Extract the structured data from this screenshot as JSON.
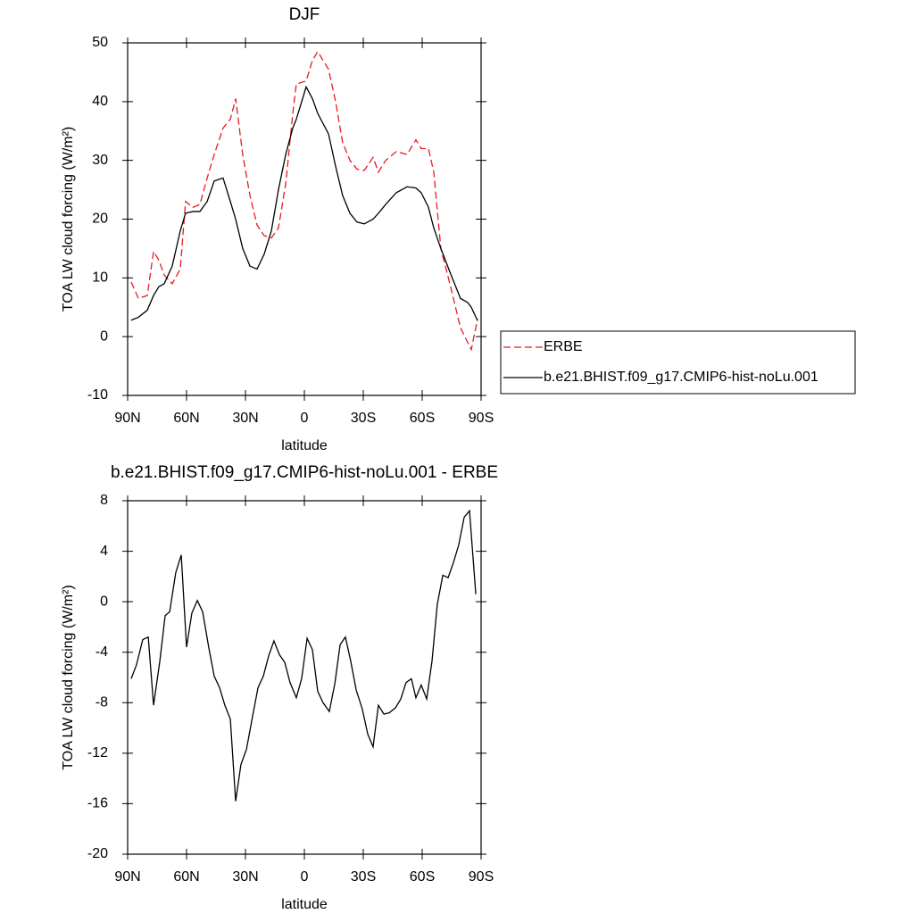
{
  "chart_data": [
    {
      "type": "line",
      "title": "DJF",
      "xlabel": "latitude",
      "ylabel": "TOA LW cloud forcing (W/m²)",
      "xlim": [
        90,
        -90
      ],
      "xticks": [
        {
          "value": 90,
          "label": "90N"
        },
        {
          "value": 60,
          "label": "60N"
        },
        {
          "value": 30,
          "label": "30N"
        },
        0,
        {
          "value": -30,
          "label": "30S"
        },
        {
          "value": -60,
          "label": "60S"
        },
        {
          "value": -90,
          "label": "90S"
        }
      ],
      "ylim": [
        -10,
        50
      ],
      "yticks": [
        -10,
        0,
        10,
        20,
        30,
        40,
        50
      ],
      "legend": "right",
      "x": [
        88.2,
        84.5,
        80,
        76.8,
        74.1,
        71.4,
        67.3,
        63.2,
        60.5,
        56.8,
        53.2,
        49.5,
        45.9,
        41.4,
        37.7,
        35,
        31.4,
        27.7,
        24.1,
        20.5,
        16.8,
        13.2,
        9.5,
        5.9,
        4.1,
        -0.9,
        -4.1,
        -6.8,
        -12.3,
        -15.9,
        -19.5,
        -23.2,
        -26.8,
        -30.5,
        -35,
        -37.7,
        -41.4,
        -46.8,
        -52.3,
        -56.8,
        -59.5,
        -63.2,
        -65.9,
        -69.5,
        -74.1,
        -79.5,
        -83.2,
        -85,
        -88.2
      ],
      "series": [
        {
          "name": "ERBE",
          "color": "#e8191f",
          "dash": true,
          "values": [
            9.3,
            6.5,
            7,
            14.5,
            13,
            10.5,
            9,
            11.5,
            23,
            22,
            22.5,
            27,
            31,
            35.5,
            37,
            40.5,
            31,
            24,
            19,
            17.2,
            16.8,
            18.5,
            26,
            38,
            43,
            43.5,
            47,
            48.5,
            45.5,
            40,
            33,
            30,
            28.5,
            28.3,
            30.5,
            28,
            30,
            31.5,
            31,
            33.5,
            32,
            32,
            28,
            15,
            9,
            1.5,
            -1,
            -2.2,
            3
          ]
        },
        {
          "name": "b.e21.BHIST.f09_g17.CMIP6-hist-noLu.001",
          "color": "#000000",
          "dash": false,
          "values": [
            2.8,
            3.3,
            4.5,
            7,
            8.5,
            9,
            12,
            18,
            21,
            21.3,
            21.3,
            23,
            26.5,
            27,
            23,
            20,
            15,
            12,
            11.5,
            14,
            18,
            25,
            31,
            35.5,
            37,
            42.5,
            40.5,
            38,
            34.5,
            29,
            24,
            21,
            19.5,
            19.2,
            20,
            21,
            22.5,
            24.5,
            25.5,
            25.3,
            24.5,
            22,
            18.5,
            15,
            11,
            6.5,
            5.8,
            5,
            2.7
          ]
        }
      ]
    },
    {
      "type": "line",
      "title": "b.e21.BHIST.f09_g17.CMIP6-hist-noLu.001 - ERBE",
      "xlabel": "latitude",
      "ylabel": "TOA LW cloud forcing (W/m²)",
      "xlim": [
        90,
        -90
      ],
      "xticks": [
        {
          "value": 90,
          "label": "90N"
        },
        {
          "value": 60,
          "label": "60N"
        },
        {
          "value": 30,
          "label": "30N"
        },
        0,
        {
          "value": -30,
          "label": "30S"
        },
        {
          "value": -60,
          "label": "60S"
        },
        {
          "value": -90,
          "label": "90S"
        }
      ],
      "ylim": [
        -20,
        8
      ],
      "yticks": [
        -20,
        -16,
        -12,
        -8,
        -4,
        0,
        4,
        8
      ],
      "x": [
        88.2,
        85.5,
        82.3,
        79.5,
        76.8,
        73.6,
        70.9,
        68.6,
        65.5,
        62.7,
        60,
        57.3,
        54.5,
        51.8,
        48.6,
        45.9,
        43.2,
        40.5,
        37.7,
        35,
        32.3,
        29.5,
        26.4,
        23.6,
        20.9,
        18.2,
        15.5,
        12.7,
        10,
        7.3,
        4.1,
        1.4,
        -1.4,
        -4.1,
        -6.8,
        -9.5,
        -12.7,
        -15.5,
        -18.2,
        -20.9,
        -23.6,
        -26.4,
        -29.5,
        -32.3,
        -35,
        -37.7,
        -40.5,
        -43.2,
        -46.4,
        -49.1,
        -51.8,
        -54.5,
        -56.8,
        -59.5,
        -62.3,
        -65,
        -67.7,
        -70.5,
        -73.2,
        -75.9,
        -78.6,
        -81.4,
        -84.1,
        -87.3
      ],
      "series": [
        {
          "color": "#000000",
          "dash": false,
          "values": [
            -6.1,
            -5,
            -3,
            -2.8,
            -8.2,
            -4.7,
            -1.1,
            -0.8,
            2.3,
            3.7,
            -3.6,
            -0.9,
            0.1,
            -0.8,
            -3.7,
            -5.9,
            -6.8,
            -8.2,
            -9.3,
            -15.8,
            -12.9,
            -11.7,
            -9.1,
            -6.8,
            -5.9,
            -4.3,
            -3.1,
            -4.2,
            -4.8,
            -6.4,
            -7.6,
            -6.1,
            -2.9,
            -3.8,
            -7.1,
            -8,
            -8.7,
            -6.5,
            -3.4,
            -2.8,
            -4.7,
            -7,
            -8.5,
            -10.5,
            -11.5,
            -8.2,
            -8.9,
            -8.8,
            -8.4,
            -7.7,
            -6.4,
            -6.1,
            -7.6,
            -6.6,
            -7.7,
            -4.7,
            -0.2,
            2.1,
            1.9,
            3.1,
            4.5,
            6.7,
            7.2,
            0.6
          ]
        }
      ]
    }
  ]
}
